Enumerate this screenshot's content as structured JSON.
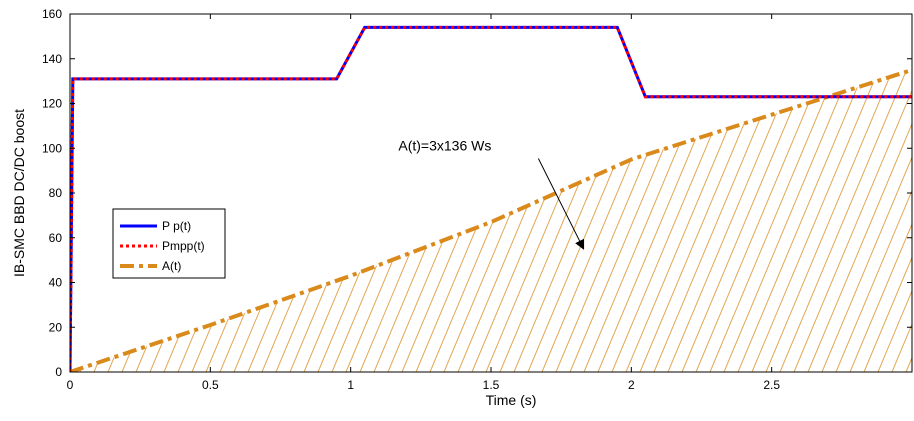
{
  "chart_data": {
    "type": "line",
    "xlabel": "Time (s)",
    "ylabel": "IB-SMC BBD DC/DC boost",
    "xlim": [
      0,
      3
    ],
    "ylim": [
      0,
      160
    ],
    "xticks": [
      "0",
      "0.5",
      "1",
      "1.5",
      "2",
      "2.5"
    ],
    "xtick_values": [
      0,
      0.5,
      1,
      1.5,
      2,
      2.5
    ],
    "yticks": [
      "0",
      "20",
      "40",
      "60",
      "80",
      "100",
      "120",
      "140",
      "160"
    ],
    "ytick_values": [
      0,
      20,
      40,
      60,
      80,
      100,
      120,
      140,
      160
    ],
    "grid": false,
    "legend_position": "middle-left",
    "series": [
      {
        "name": "P p(t)",
        "color": "#0000ff",
        "style": "solid",
        "x": [
          0,
          0.01,
          0.95,
          1.05,
          1.95,
          2.05,
          3.0
        ],
        "y": [
          0,
          131,
          131,
          154,
          154,
          123,
          123
        ]
      },
      {
        "name": "Pmpp(t)",
        "color": "#ff0000",
        "style": "dotted",
        "x": [
          0,
          0.01,
          0.95,
          1.05,
          1.95,
          2.05,
          3.0
        ],
        "y": [
          0,
          131,
          131,
          154,
          154,
          123,
          123
        ]
      },
      {
        "name": "A(t)",
        "color": "#d98a1a",
        "style": "dashdot",
        "hatched": true,
        "x": [
          0,
          0.5,
          1.0,
          1.5,
          2.0,
          2.5,
          3.0
        ],
        "y": [
          0,
          21,
          43,
          67,
          95,
          115,
          135
        ]
      }
    ],
    "annotation": {
      "text": "A(t)=3x136 Ws",
      "text_at": [
        1.17,
        99
      ],
      "arrow_to": [
        1.83,
        55
      ]
    }
  }
}
